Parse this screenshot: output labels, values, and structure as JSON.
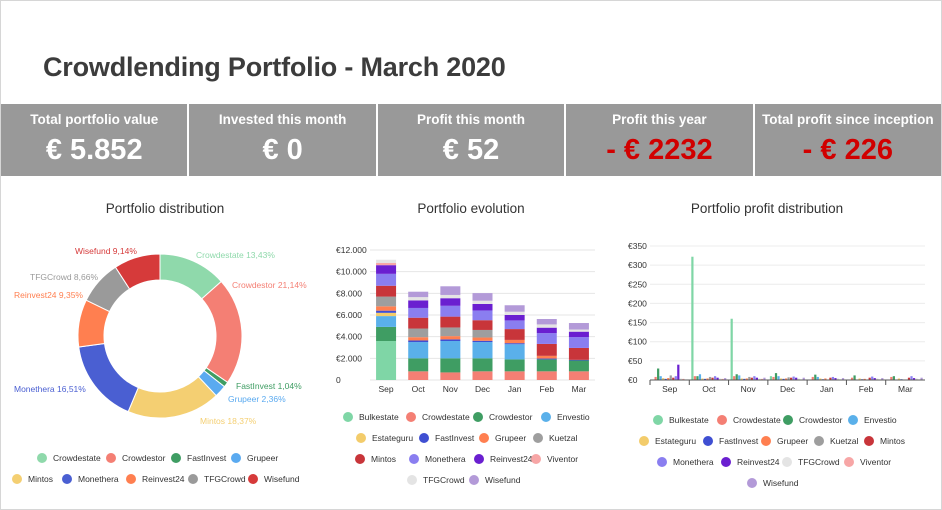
{
  "title": "Crowdlending Portfolio - March 2020",
  "kpis": [
    {
      "label": "Total portfolio value",
      "value": "€ 5.852",
      "negative": false
    },
    {
      "label": "Invested this month",
      "value": "€ 0",
      "negative": false
    },
    {
      "label": "Profit this month",
      "value": "€ 52",
      "negative": false
    },
    {
      "label": "Profit this year",
      "value": "- € 2232",
      "negative": true
    },
    {
      "label": "Total profit since inception",
      "value": "- € 226",
      "negative": true
    }
  ],
  "colors": {
    "Bulkestate": "#7fd6a6",
    "Crowdestate": "#8fd9ab",
    "Crowdestor": "#f47f74",
    "Envestio": "#5ab0ea",
    "Estateguru": "#f3cc6b",
    "FastInvest": "#3f9d63",
    "Grupeer": "#5aaaf0",
    "Kuetzal": "#9e9e9e",
    "Mintos": "#f4cf72",
    "Monethera": "#4a5fd2",
    "Reinvest24": "#ff7f50",
    "TFGCrowd": "#9a9a9a",
    "Wisefund": "#d63a3a",
    "Viventor": "#f7a6a6"
  },
  "chart_data": [
    {
      "type": "pie",
      "title": "Portfolio distribution",
      "donut": true,
      "slices": [
        {
          "name": "Crowdestate",
          "value": 13.43,
          "label": "Crowdestate 13,43%",
          "color": "#8fd9ab"
        },
        {
          "name": "Crowdestor",
          "value": 21.14,
          "label": "Crowdestor 21,14%",
          "color": "#f47f74"
        },
        {
          "name": "FastInvest",
          "value": 1.04,
          "label": "FastInvest 1,04%",
          "color": "#3f9d63"
        },
        {
          "name": "Grupeer",
          "value": 2.36,
          "label": "Grupeer 2,36%",
          "color": "#5aaaf0"
        },
        {
          "name": "Mintos",
          "value": 18.37,
          "label": "Mintos 18,37%",
          "color": "#f4cf72"
        },
        {
          "name": "Monethera",
          "value": 16.51,
          "label": "Monethera 16,51%",
          "color": "#4a5fd2"
        },
        {
          "name": "Reinvest24",
          "value": 9.35,
          "label": "Reinvest24 9,35%",
          "color": "#ff7f50"
        },
        {
          "name": "TFGCrowd",
          "value": 8.66,
          "label": "TFGCrowd 8,66%",
          "color": "#9a9a9a"
        },
        {
          "name": "Wisefund",
          "value": 9.14,
          "label": "Wisefund 9,14%",
          "color": "#d63a3a"
        }
      ],
      "legend": [
        "Crowdestate",
        "Crowdestor",
        "FastInvest",
        "Grupeer",
        "Mintos",
        "Monethera",
        "Reinvest24",
        "TFGCrowd",
        "Wisefund"
      ],
      "legend_position": "bottom"
    },
    {
      "type": "bar",
      "stacked": true,
      "title": "Portfolio evolution",
      "categories": [
        "Sep",
        "Oct",
        "Nov",
        "Dec",
        "Jan",
        "Feb",
        "Mar"
      ],
      "ylim": [
        0,
        12000
      ],
      "yticks": [
        0,
        2000,
        4000,
        6000,
        8000,
        10000,
        12000
      ],
      "ytick_labels": [
        "0",
        "€2.000",
        "€4.000",
        "€6.000",
        "€8.000",
        "€10.000",
        "€12.000"
      ],
      "series": [
        {
          "name": "Bulkestate",
          "color": "#7fd6a6",
          "values": [
            3600,
            0,
            0,
            0,
            0,
            0,
            0
          ]
        },
        {
          "name": "Crowdestate",
          "color": "#f47f74",
          "values": [
            0,
            800,
            700,
            800,
            800,
            800,
            800
          ]
        },
        {
          "name": "Crowdestor",
          "color": "#3f9d63",
          "values": [
            1300,
            1200,
            1300,
            1200,
            1100,
            1100,
            1000
          ]
        },
        {
          "name": "Envestio",
          "color": "#5ab0ea",
          "values": [
            1000,
            1500,
            1600,
            1500,
            1400,
            0,
            0
          ]
        },
        {
          "name": "Estateguru",
          "color": "#f3cc6b",
          "values": [
            300,
            0,
            0,
            0,
            0,
            0,
            0
          ]
        },
        {
          "name": "FastInvest",
          "color": "#3f4fd2",
          "values": [
            200,
            150,
            150,
            120,
            100,
            80,
            60
          ]
        },
        {
          "name": "Grupeer",
          "color": "#ff7f50",
          "values": [
            400,
            300,
            300,
            300,
            300,
            250,
            0
          ]
        },
        {
          "name": "Kuetzal",
          "color": "#9e9e9e",
          "values": [
            900,
            800,
            800,
            700,
            0,
            0,
            0
          ]
        },
        {
          "name": "Mintos",
          "color": "#c8353a",
          "values": [
            1000,
            1000,
            1000,
            900,
            1000,
            1100,
            1100
          ]
        },
        {
          "name": "Monethera",
          "color": "#8a7ef0",
          "values": [
            1100,
            900,
            1000,
            900,
            800,
            1000,
            1000
          ]
        },
        {
          "name": "Reinvest24",
          "color": "#6a1fd0",
          "values": [
            800,
            700,
            700,
            600,
            500,
            500,
            500
          ]
        },
        {
          "name": "Viventor",
          "color": "#f7a6a6",
          "values": [
            200,
            0,
            0,
            0,
            0,
            0,
            0
          ]
        },
        {
          "name": "TFGCrowd",
          "color": "#e4e4e4",
          "values": [
            300,
            300,
            300,
            300,
            300,
            300,
            200
          ]
        },
        {
          "name": "Wisefund",
          "color": "#b39ad8",
          "values": [
            0,
            500,
            800,
            700,
            600,
            500,
            600
          ]
        }
      ],
      "legend_position": "bottom"
    },
    {
      "type": "bar",
      "title": "Portfolio profit distribution",
      "categories": [
        "Sep",
        "Oct",
        "Nov",
        "Dec",
        "Jan",
        "Feb",
        "Mar"
      ],
      "ylim": [
        0,
        350
      ],
      "yticks": [
        0,
        50,
        100,
        150,
        200,
        250,
        300,
        350
      ],
      "ytick_labels": [
        "€0",
        "€50",
        "€100",
        "€150",
        "€200",
        "€250",
        "€300",
        "€350"
      ],
      "series": [
        {
          "name": "Bulkestate",
          "color": "#7fd6a6",
          "values": [
            0,
            322,
            160,
            10,
            0,
            0,
            0
          ]
        },
        {
          "name": "Crowdestate",
          "color": "#f47f74",
          "values": [
            8,
            10,
            10,
            8,
            8,
            6,
            8
          ]
        },
        {
          "name": "Crowdestor",
          "color": "#3f9d63",
          "values": [
            30,
            10,
            15,
            18,
            14,
            12,
            10
          ]
        },
        {
          "name": "Envestio",
          "color": "#5ab0ea",
          "values": [
            10,
            15,
            12,
            10,
            8,
            0,
            0
          ]
        },
        {
          "name": "Estateguru",
          "color": "#f3cc6b",
          "values": [
            5,
            4,
            4,
            4,
            4,
            4,
            4
          ]
        },
        {
          "name": "FastInvest",
          "color": "#3f4fd2",
          "values": [
            3,
            3,
            3,
            3,
            2,
            2,
            2
          ]
        },
        {
          "name": "Grupeer",
          "color": "#ff7f50",
          "values": [
            5,
            4,
            4,
            4,
            4,
            3,
            0
          ]
        },
        {
          "name": "Kuetzal",
          "color": "#9e9e9e",
          "values": [
            12,
            8,
            8,
            7,
            0,
            0,
            0
          ]
        },
        {
          "name": "Mintos",
          "color": "#c8353a",
          "values": [
            6,
            6,
            6,
            6,
            6,
            6,
            6
          ]
        },
        {
          "name": "Monethera",
          "color": "#8a7ef0",
          "values": [
            10,
            10,
            10,
            9,
            8,
            9,
            10
          ]
        },
        {
          "name": "Reinvest24",
          "color": "#6a1fd0",
          "values": [
            40,
            6,
            6,
            6,
            5,
            5,
            5
          ]
        },
        {
          "name": "TFGCrowd",
          "color": "#e4e4e4",
          "values": [
            4,
            4,
            4,
            4,
            4,
            4,
            4
          ]
        },
        {
          "name": "Viventor",
          "color": "#f7a6a6",
          "values": [
            3,
            3,
            3,
            0,
            0,
            0,
            0
          ]
        },
        {
          "name": "Wisefund",
          "color": "#b39ad8",
          "values": [
            0,
            5,
            6,
            6,
            5,
            5,
            6
          ]
        }
      ],
      "legend_position": "bottom"
    }
  ]
}
